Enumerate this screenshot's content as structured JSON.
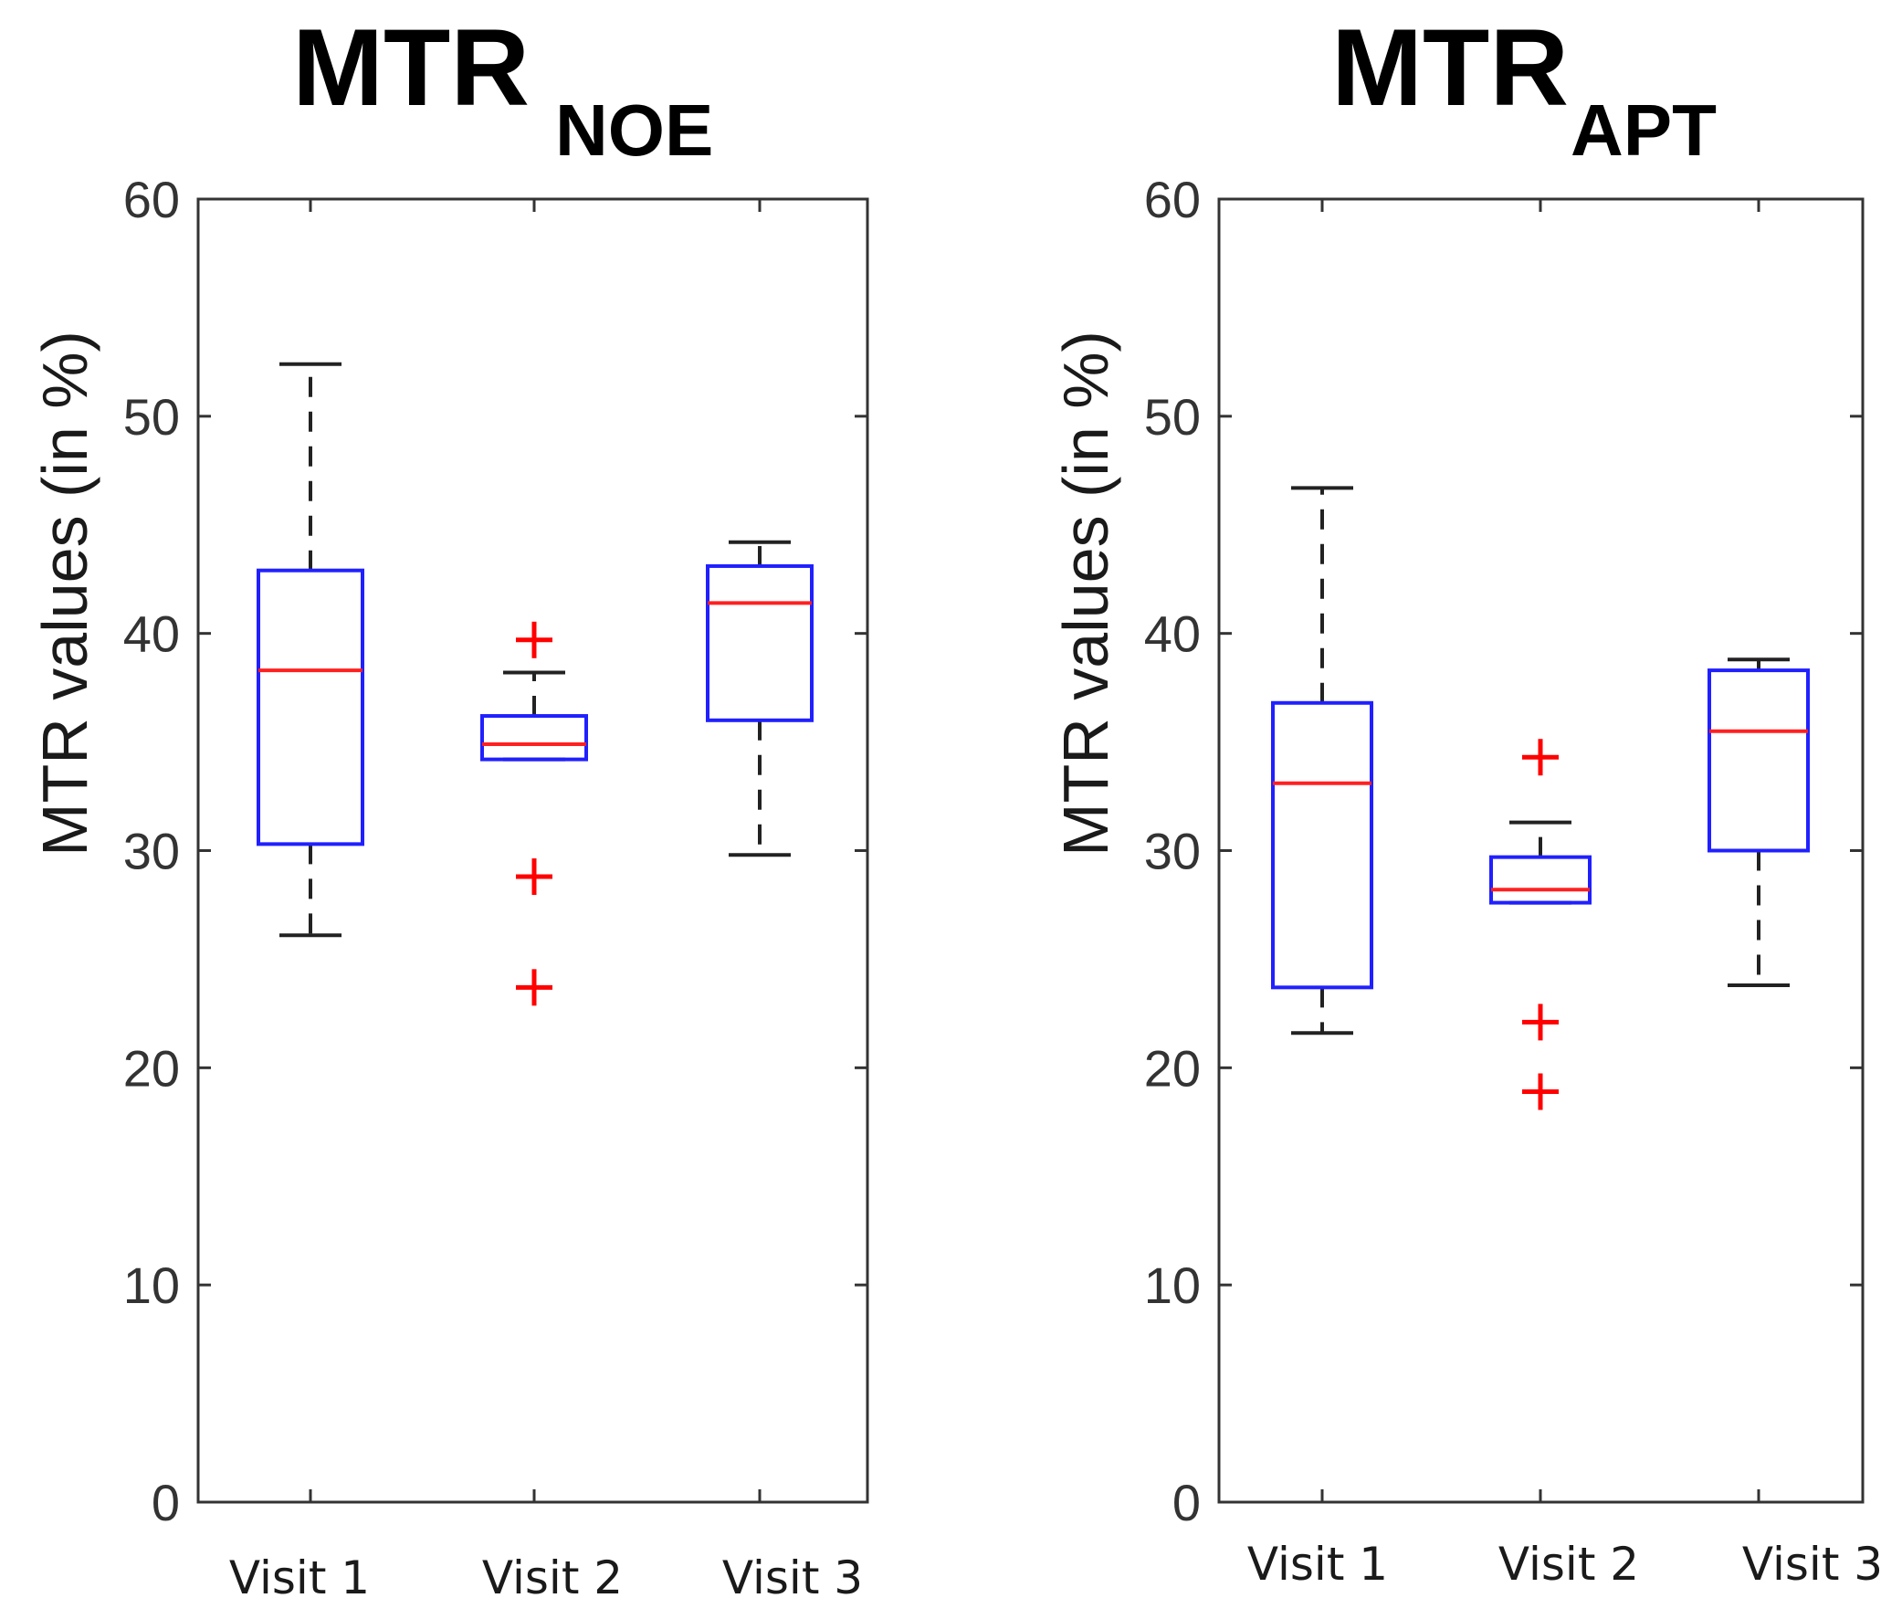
{
  "chart_data": [
    {
      "type": "box",
      "title": "MTR",
      "title_subscript": "NOE",
      "ylabel": "MTR values (in %)",
      "xlabel": "",
      "ylim": [
        0,
        60
      ],
      "yticks": [
        "0",
        "10",
        "20",
        "30",
        "40",
        "50",
        "60"
      ],
      "categories": [
        "Visit 1",
        "Visit 2",
        "Visit 3"
      ],
      "box_color": "#2020ff",
      "median_color": "#ff2020",
      "outlier_color": "#ff0000",
      "boxes": [
        {
          "whisker_low": 26.1,
          "q1": 30.3,
          "median": 38.3,
          "q3": 42.9,
          "whisker_high": 52.4,
          "outliers": []
        },
        {
          "whisker_low": 34.2,
          "q1": 34.2,
          "median": 34.9,
          "q3": 36.2,
          "whisker_high": 38.2,
          "outliers": [
            39.7,
            28.8,
            23.7
          ]
        },
        {
          "whisker_low": 29.8,
          "q1": 36.0,
          "median": 41.4,
          "q3": 43.1,
          "whisker_high": 44.2,
          "outliers": []
        }
      ]
    },
    {
      "type": "box",
      "title": "MTR",
      "title_subscript": "APT",
      "ylabel": "MTR values (in %)",
      "xlabel": "",
      "ylim": [
        0,
        60
      ],
      "yticks": [
        "0",
        "10",
        "20",
        "30",
        "40",
        "50",
        "60"
      ],
      "categories": [
        "Visit 1",
        "Visit 2",
        "Visit 3"
      ],
      "box_color": "#2020ff",
      "median_color": "#ff2020",
      "outlier_color": "#ff0000",
      "boxes": [
        {
          "whisker_low": 21.6,
          "q1": 23.7,
          "median": 33.1,
          "q3": 36.8,
          "whisker_high": 46.7,
          "outliers": []
        },
        {
          "whisker_low": 27.6,
          "q1": 27.6,
          "median": 28.2,
          "q3": 29.7,
          "whisker_high": 31.3,
          "outliers": [
            34.3,
            22.1,
            18.9
          ]
        },
        {
          "whisker_low": 23.8,
          "q1": 30.0,
          "median": 35.5,
          "q3": 38.3,
          "whisker_high": 38.8,
          "outliers": []
        }
      ]
    }
  ]
}
